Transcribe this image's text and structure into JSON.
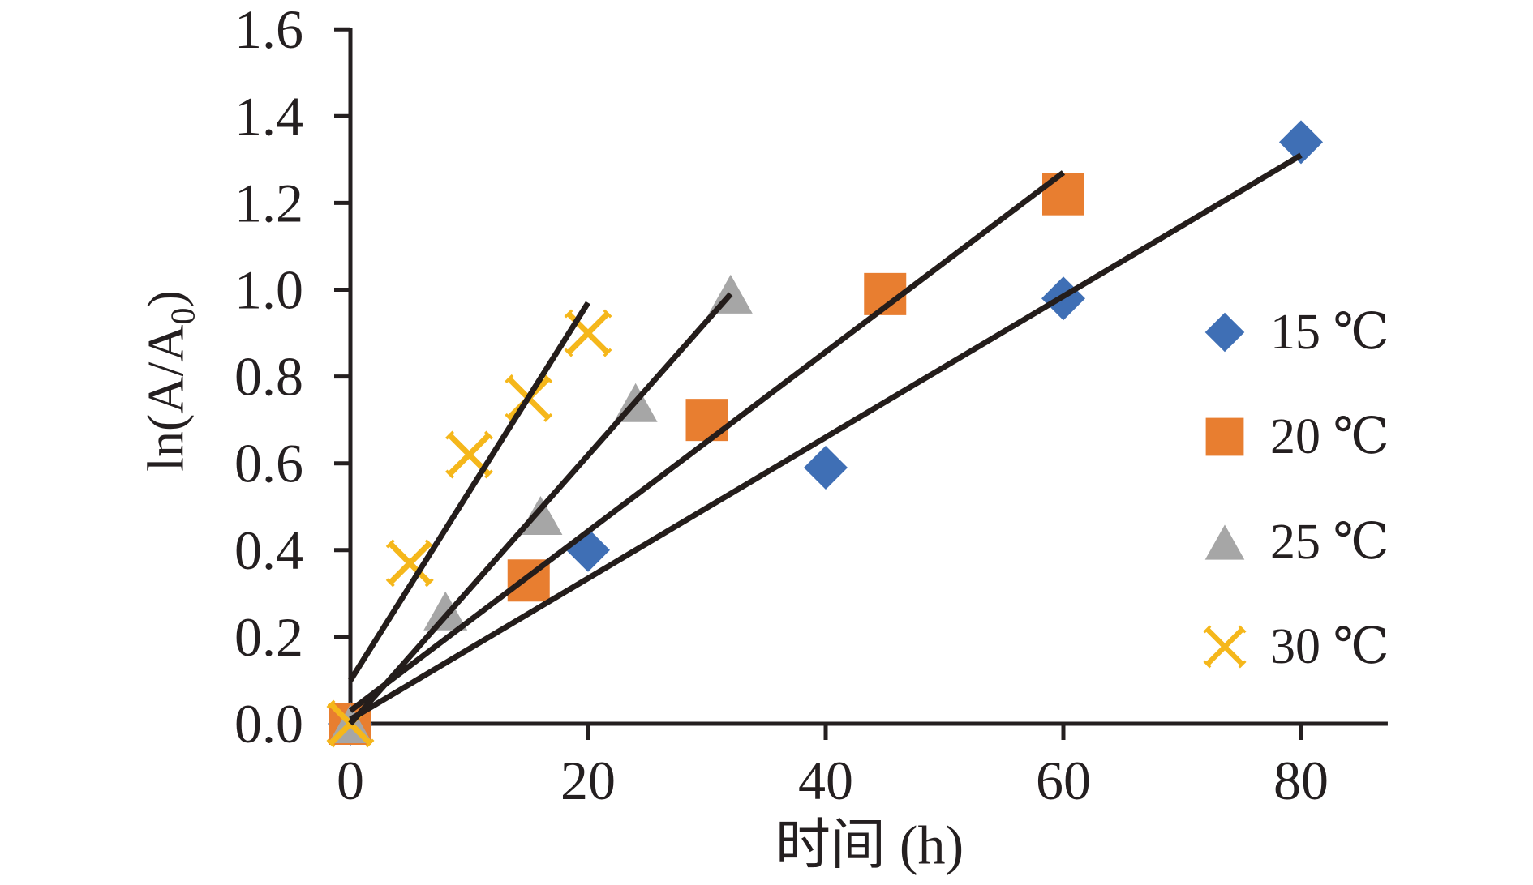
{
  "chart_data": {
    "type": "scatter",
    "xlabel": "时间 (h)",
    "ylabel": "ln(A/A₀)",
    "ylabel_parts": {
      "pre": "ln(A/A",
      "sub": "0",
      "post": ")"
    },
    "x_range": [
      0,
      87.3
    ],
    "y_range": [
      0,
      1.6
    ],
    "grid": false,
    "legend_position": "right-middle",
    "axis_color": "#241f20",
    "trendline_color": "#241d1b",
    "x_ticks": {
      "values": [
        0,
        20,
        40,
        60,
        80
      ],
      "labels": [
        "0",
        "20",
        "40",
        "60",
        "80"
      ]
    },
    "y_ticks": {
      "values": [
        0,
        0.2,
        0.4,
        0.6,
        0.8,
        1.0,
        1.2,
        1.4,
        1.6
      ],
      "labels": [
        "0.0",
        "0.2",
        "0.4",
        "0.6",
        "0.8",
        "1.0",
        "1.2",
        "1.4",
        "1.6"
      ]
    },
    "series": [
      {
        "name": "15 ℃",
        "marker": "diamond",
        "color": "#3f6fb5",
        "points": [
          [
            0,
            0
          ],
          [
            20,
            0.4
          ],
          [
            40,
            0.59
          ],
          [
            60,
            0.98
          ],
          [
            80,
            1.34
          ]
        ],
        "trendline": {
          "x1": 0,
          "y1": 0.01,
          "x2": 80,
          "y2": 1.31
        }
      },
      {
        "name": "20 ℃",
        "marker": "square",
        "color": "#e87e30",
        "points": [
          [
            0,
            0
          ],
          [
            15,
            0.33
          ],
          [
            30,
            0.7
          ],
          [
            45,
            0.99
          ],
          [
            60,
            1.22
          ]
        ],
        "trendline": {
          "x1": 0,
          "y1": 0.03,
          "x2": 60,
          "y2": 1.27
        }
      },
      {
        "name": "25 ℃",
        "marker": "triangle",
        "color": "#a6a6a6",
        "points": [
          [
            0,
            0
          ],
          [
            8,
            0.26
          ],
          [
            16,
            0.48
          ],
          [
            24,
            0.74
          ],
          [
            32,
            0.99
          ]
        ],
        "trendline": {
          "x1": 0,
          "y1": 0.0,
          "x2": 32,
          "y2": 0.99
        }
      },
      {
        "name": "30 ℃",
        "marker": "x",
        "color": "#f5b71b",
        "points": [
          [
            0,
            0
          ],
          [
            5,
            0.37
          ],
          [
            10,
            0.62
          ],
          [
            15,
            0.75
          ],
          [
            20,
            0.9
          ]
        ],
        "trendline": {
          "x1": 0,
          "y1": 0.1,
          "x2": 20,
          "y2": 0.97
        }
      }
    ]
  }
}
